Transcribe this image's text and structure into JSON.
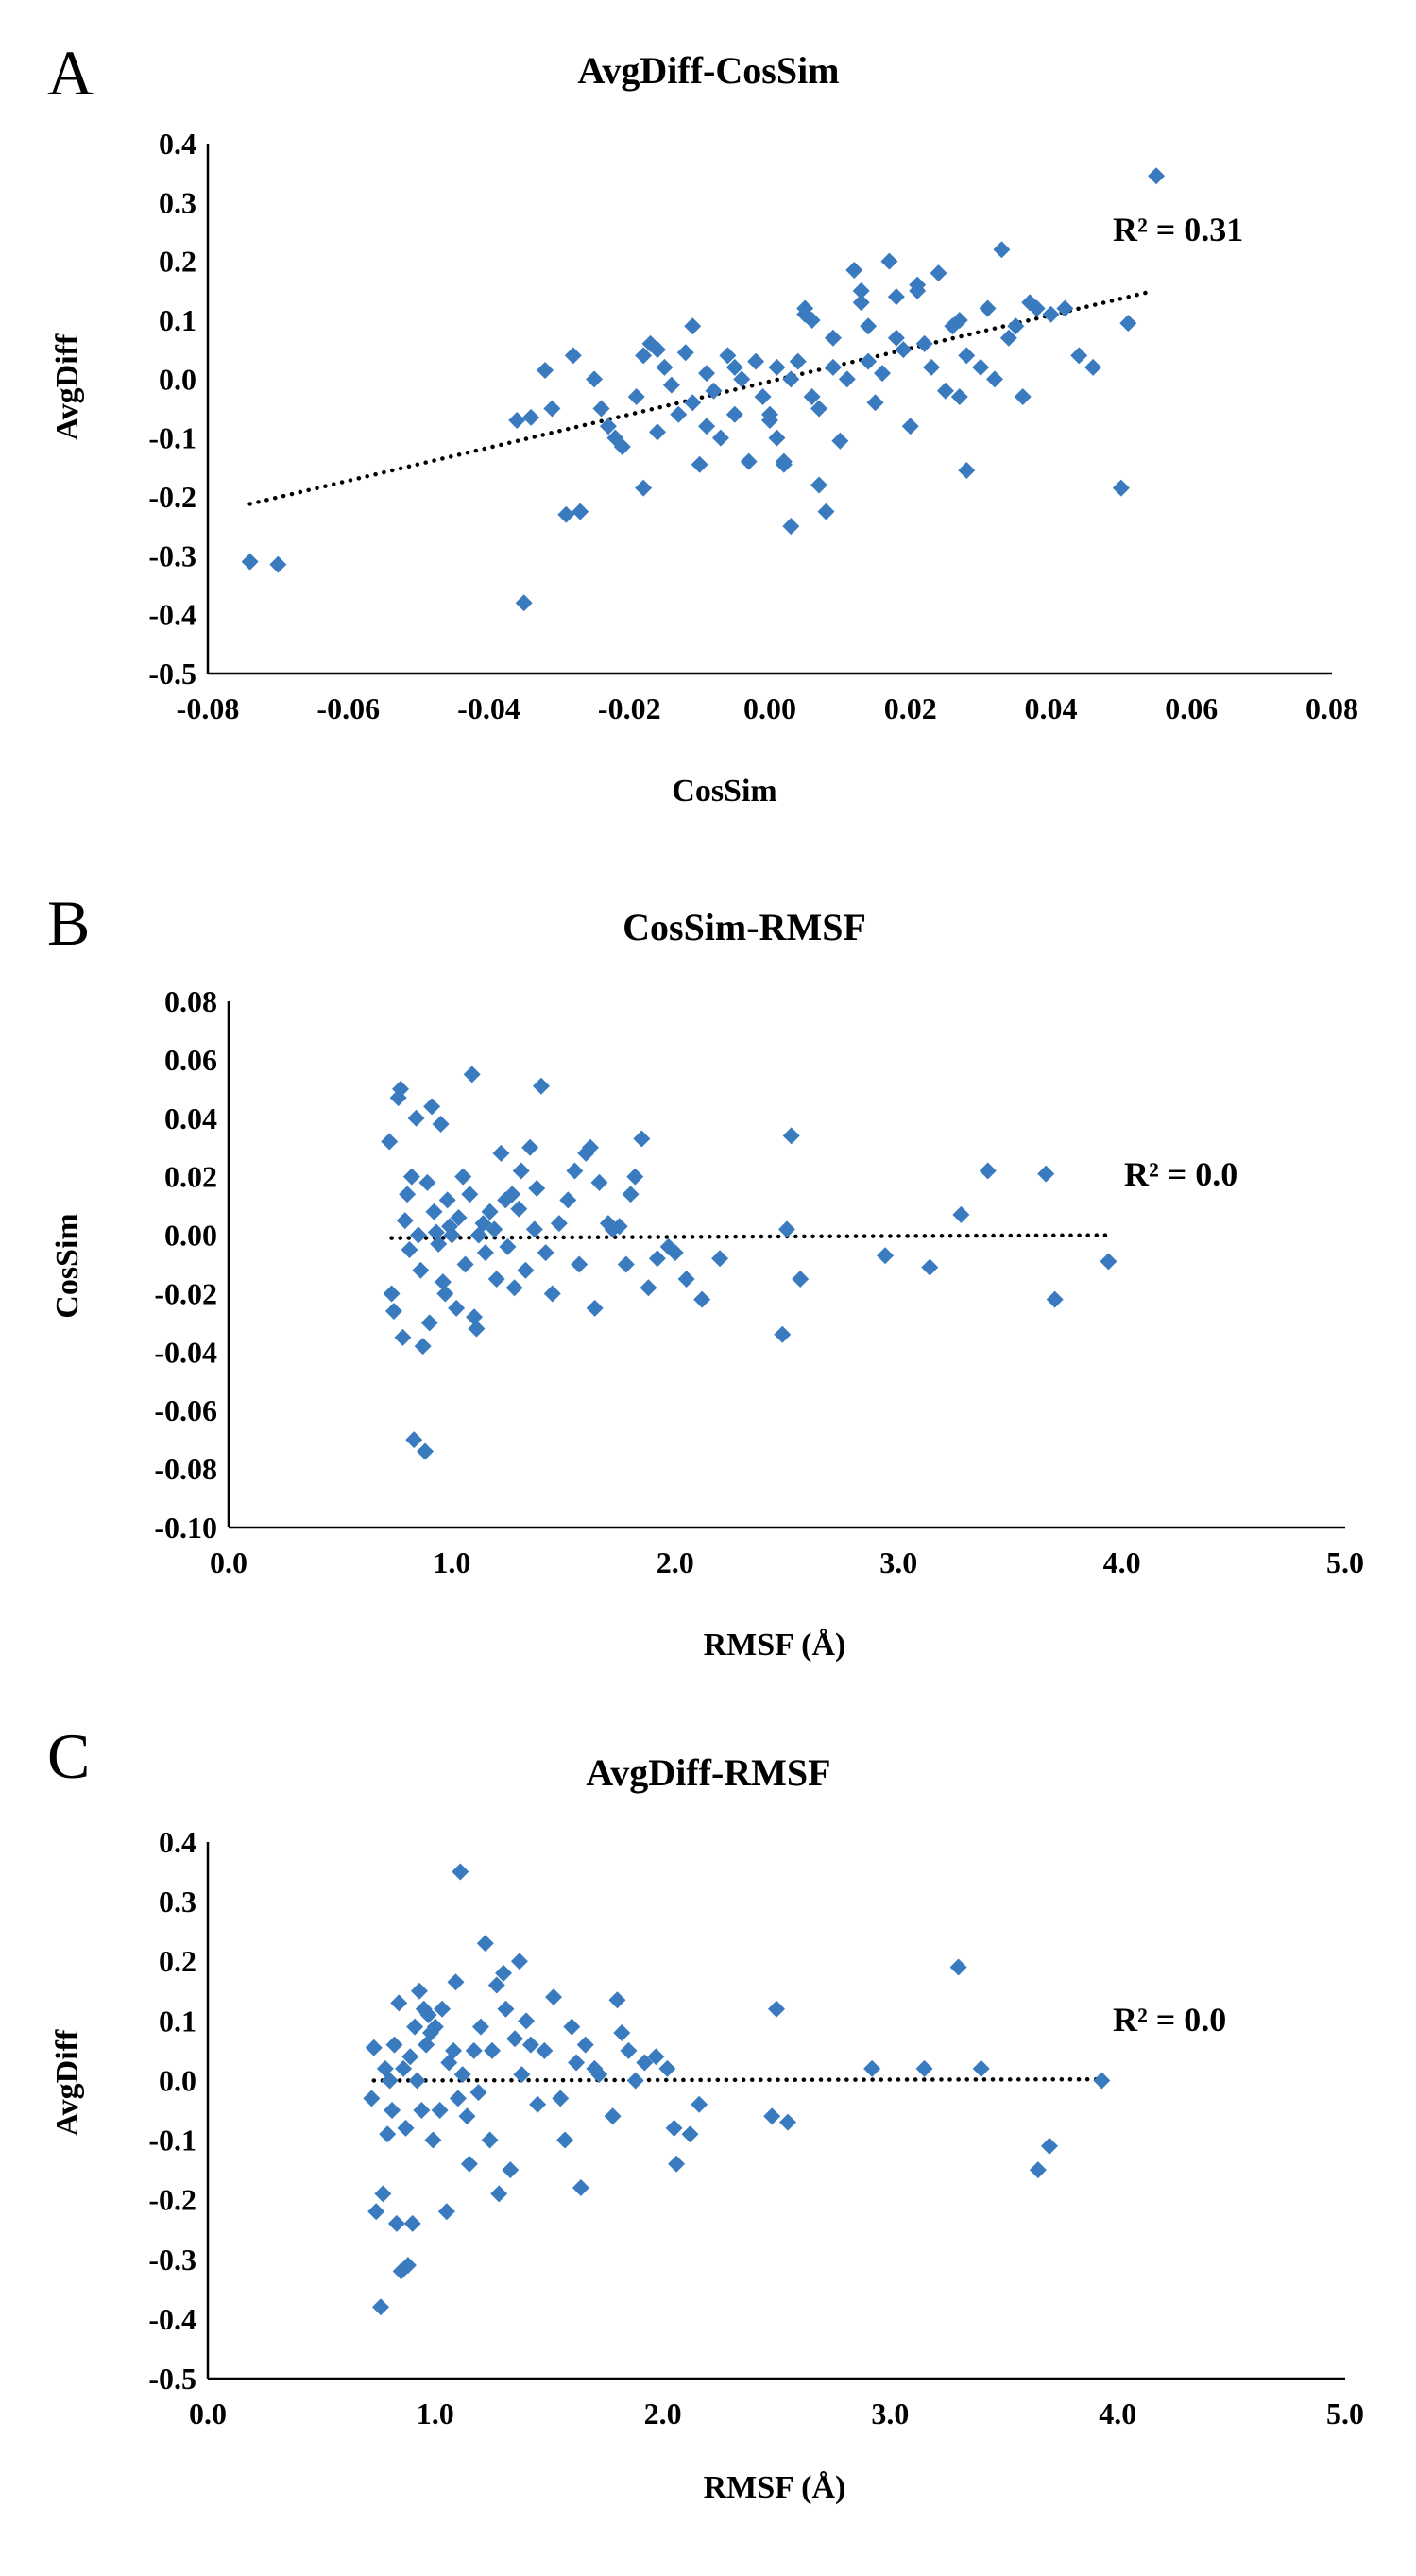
{
  "chart_data": [
    {
      "panel": "A",
      "type": "scatter",
      "title": "AvgDiff-CosSim",
      "xlabel": "CosSim",
      "ylabel": "AvgDiff",
      "xlim": [
        -0.08,
        0.08
      ],
      "ylim": [
        -0.5,
        0.4
      ],
      "xticks": [
        "-0.08",
        "-0.06",
        "-0.04",
        "-0.02",
        "0.00",
        "0.02",
        "0.04",
        "0.06",
        "0.08"
      ],
      "yticks": [
        "0.4",
        "0.3",
        "0.2",
        "0.1",
        "0.0",
        "-0.1",
        "-0.2",
        "-0.3",
        "-0.4",
        "-0.5"
      ],
      "r2_label": "R² = 0.31",
      "marker_color": "#3a7bbf",
      "trendline": {
        "x": [
          -0.074,
          0.054
        ],
        "y": [
          -0.212,
          0.148
        ]
      },
      "points": [
        [
          -0.074,
          -0.31
        ],
        [
          -0.07,
          -0.315
        ],
        [
          -0.035,
          -0.38
        ],
        [
          -0.036,
          -0.07
        ],
        [
          -0.034,
          -0.065
        ],
        [
          -0.032,
          0.015
        ],
        [
          -0.031,
          -0.05
        ],
        [
          -0.029,
          -0.23
        ],
        [
          -0.028,
          0.04
        ],
        [
          -0.027,
          -0.225
        ],
        [
          -0.025,
          0.0
        ],
        [
          -0.024,
          -0.05
        ],
        [
          -0.023,
          -0.08
        ],
        [
          -0.022,
          -0.1
        ],
        [
          -0.021,
          -0.115
        ],
        [
          -0.019,
          -0.03
        ],
        [
          -0.018,
          0.04
        ],
        [
          -0.018,
          -0.185
        ],
        [
          -0.017,
          0.06
        ],
        [
          -0.016,
          0.05
        ],
        [
          -0.016,
          -0.09
        ],
        [
          -0.015,
          0.02
        ],
        [
          -0.014,
          -0.01
        ],
        [
          -0.013,
          -0.06
        ],
        [
          -0.012,
          0.045
        ],
        [
          -0.011,
          0.09
        ],
        [
          -0.011,
          -0.04
        ],
        [
          -0.01,
          -0.145
        ],
        [
          -0.009,
          0.01
        ],
        [
          -0.009,
          -0.08
        ],
        [
          -0.008,
          -0.02
        ],
        [
          -0.007,
          -0.1
        ],
        [
          -0.006,
          0.04
        ],
        [
          -0.005,
          0.02
        ],
        [
          -0.005,
          -0.06
        ],
        [
          -0.004,
          0.0
        ],
        [
          -0.003,
          -0.14
        ],
        [
          -0.002,
          0.03
        ],
        [
          -0.001,
          -0.03
        ],
        [
          0.0,
          -0.06
        ],
        [
          0.0,
          -0.07
        ],
        [
          0.001,
          -0.1
        ],
        [
          0.001,
          0.02
        ],
        [
          0.002,
          -0.14
        ],
        [
          0.002,
          -0.145
        ],
        [
          0.003,
          0.0
        ],
        [
          0.003,
          -0.25
        ],
        [
          0.004,
          0.03
        ],
        [
          0.005,
          0.12
        ],
        [
          0.005,
          0.11
        ],
        [
          0.006,
          0.1
        ],
        [
          0.006,
          -0.03
        ],
        [
          0.007,
          -0.05
        ],
        [
          0.007,
          -0.18
        ],
        [
          0.008,
          -0.225
        ],
        [
          0.009,
          0.02
        ],
        [
          0.009,
          0.07
        ],
        [
          0.01,
          -0.105
        ],
        [
          0.011,
          0.0
        ],
        [
          0.012,
          0.185
        ],
        [
          0.013,
          0.13
        ],
        [
          0.013,
          0.15
        ],
        [
          0.014,
          0.09
        ],
        [
          0.014,
          0.03
        ],
        [
          0.015,
          -0.04
        ],
        [
          0.016,
          0.01
        ],
        [
          0.017,
          0.2
        ],
        [
          0.018,
          0.14
        ],
        [
          0.018,
          0.07
        ],
        [
          0.019,
          0.05
        ],
        [
          0.02,
          -0.08
        ],
        [
          0.021,
          0.16
        ],
        [
          0.021,
          0.15
        ],
        [
          0.022,
          0.06
        ],
        [
          0.023,
          0.02
        ],
        [
          0.024,
          0.18
        ],
        [
          0.025,
          -0.02
        ],
        [
          0.026,
          0.09
        ],
        [
          0.027,
          0.1
        ],
        [
          0.027,
          -0.03
        ],
        [
          0.028,
          0.04
        ],
        [
          0.028,
          -0.155
        ],
        [
          0.03,
          0.02
        ],
        [
          0.031,
          0.12
        ],
        [
          0.032,
          0.0
        ],
        [
          0.033,
          0.22
        ],
        [
          0.034,
          0.07
        ],
        [
          0.035,
          0.09
        ],
        [
          0.036,
          -0.03
        ],
        [
          0.037,
          0.13
        ],
        [
          0.038,
          0.12
        ],
        [
          0.04,
          0.11
        ],
        [
          0.042,
          0.12
        ],
        [
          0.044,
          0.04
        ],
        [
          0.046,
          0.02
        ],
        [
          0.05,
          -0.185
        ],
        [
          0.051,
          0.095
        ],
        [
          0.055,
          0.345
        ]
      ]
    },
    {
      "panel": "B",
      "type": "scatter",
      "title": "CosSim-RMSF",
      "xlabel": "RMSF (Å)",
      "ylabel": "CosSim",
      "xlim": [
        0.0,
        5.0
      ],
      "ylim": [
        -0.1,
        0.08
      ],
      "xticks": [
        "0.0",
        "1.0",
        "2.0",
        "3.0",
        "4.0",
        "5.0"
      ],
      "yticks": [
        "0.08",
        "0.06",
        "0.04",
        "0.02",
        "0.00",
        "-0.02",
        "-0.04",
        "-0.06",
        "-0.08",
        "-0.10"
      ],
      "r2_label": "R² = 0.0",
      "marker_color": "#3a7bbf",
      "trendline": {
        "x": [
          0.73,
          3.95
        ],
        "y": [
          -0.001,
          0.0
        ]
      },
      "points": [
        [
          0.72,
          0.032
        ],
        [
          0.73,
          -0.02
        ],
        [
          0.74,
          -0.026
        ],
        [
          0.76,
          0.047
        ],
        [
          0.77,
          0.05
        ],
        [
          0.78,
          -0.035
        ],
        [
          0.79,
          0.005
        ],
        [
          0.8,
          0.014
        ],
        [
          0.81,
          -0.005
        ],
        [
          0.82,
          0.02
        ],
        [
          0.83,
          -0.07
        ],
        [
          0.84,
          0.04
        ],
        [
          0.85,
          0.0
        ],
        [
          0.86,
          -0.012
        ],
        [
          0.87,
          -0.038
        ],
        [
          0.88,
          -0.074
        ],
        [
          0.89,
          0.018
        ],
        [
          0.9,
          -0.03
        ],
        [
          0.91,
          0.044
        ],
        [
          0.92,
          0.008
        ],
        [
          0.93,
          0.001
        ],
        [
          0.94,
          -0.003
        ],
        [
          0.95,
          0.038
        ],
        [
          0.96,
          -0.016
        ],
        [
          0.97,
          -0.02
        ],
        [
          0.98,
          0.012
        ],
        [
          0.99,
          0.003
        ],
        [
          1.0,
          0.0
        ],
        [
          1.02,
          -0.025
        ],
        [
          1.03,
          0.006
        ],
        [
          1.05,
          0.02
        ],
        [
          1.06,
          -0.01
        ],
        [
          1.08,
          0.014
        ],
        [
          1.09,
          0.055
        ],
        [
          1.1,
          -0.028
        ],
        [
          1.11,
          -0.032
        ],
        [
          1.12,
          0.0
        ],
        [
          1.14,
          0.004
        ],
        [
          1.15,
          -0.006
        ],
        [
          1.17,
          0.008
        ],
        [
          1.19,
          0.002
        ],
        [
          1.2,
          -0.015
        ],
        [
          1.22,
          0.028
        ],
        [
          1.24,
          0.012
        ],
        [
          1.25,
          -0.004
        ],
        [
          1.27,
          0.014
        ],
        [
          1.28,
          -0.018
        ],
        [
          1.3,
          0.009
        ],
        [
          1.31,
          0.022
        ],
        [
          1.33,
          -0.012
        ],
        [
          1.35,
          0.03
        ],
        [
          1.37,
          0.002
        ],
        [
          1.38,
          0.016
        ],
        [
          1.4,
          0.051
        ],
        [
          1.42,
          -0.006
        ],
        [
          1.45,
          -0.02
        ],
        [
          1.48,
          0.004
        ],
        [
          1.52,
          0.012
        ],
        [
          1.55,
          0.022
        ],
        [
          1.57,
          -0.01
        ],
        [
          1.6,
          0.028
        ],
        [
          1.62,
          0.03
        ],
        [
          1.64,
          -0.025
        ],
        [
          1.66,
          0.018
        ],
        [
          1.7,
          0.004
        ],
        [
          1.72,
          0.002
        ],
        [
          1.75,
          0.003
        ],
        [
          1.78,
          -0.01
        ],
        [
          1.8,
          0.014
        ],
        [
          1.82,
          0.02
        ],
        [
          1.85,
          0.033
        ],
        [
          1.88,
          -0.018
        ],
        [
          1.92,
          -0.008
        ],
        [
          1.97,
          -0.004
        ],
        [
          2.0,
          -0.006
        ],
        [
          2.05,
          -0.015
        ],
        [
          2.12,
          -0.022
        ],
        [
          2.2,
          -0.008
        ],
        [
          2.48,
          -0.034
        ],
        [
          2.5,
          0.002
        ],
        [
          2.52,
          0.034
        ],
        [
          2.56,
          -0.015
        ],
        [
          2.94,
          -0.007
        ],
        [
          3.14,
          -0.011
        ],
        [
          3.28,
          0.007
        ],
        [
          3.4,
          0.022
        ],
        [
          3.66,
          0.021
        ],
        [
          3.7,
          -0.022
        ],
        [
          3.94,
          -0.009
        ]
      ]
    },
    {
      "panel": "C",
      "type": "scatter",
      "title": "AvgDiff-RMSF",
      "xlabel": "RMSF (Å)",
      "ylabel": "AvgDiff",
      "xlim": [
        0.0,
        5.0
      ],
      "ylim": [
        -0.5,
        0.4
      ],
      "xticks": [
        "0.0",
        "1.0",
        "2.0",
        "3.0",
        "4.0",
        "5.0"
      ],
      "yticks": [
        "0.4",
        "0.3",
        "0.2",
        "0.1",
        "0.0",
        "-0.1",
        "-0.2",
        "-0.3",
        "-0.4",
        "-0.5"
      ],
      "r2_label": "R² = 0.0",
      "marker_color": "#3a7bbf",
      "trendline": {
        "x": [
          0.73,
          3.95
        ],
        "y": [
          0.0,
          0.002
        ]
      },
      "points": [
        [
          0.72,
          -0.03
        ],
        [
          0.73,
          0.055
        ],
        [
          0.74,
          -0.22
        ],
        [
          0.76,
          -0.38
        ],
        [
          0.77,
          -0.19
        ],
        [
          0.78,
          0.02
        ],
        [
          0.79,
          -0.09
        ],
        [
          0.8,
          0.0
        ],
        [
          0.81,
          -0.05
        ],
        [
          0.82,
          0.06
        ],
        [
          0.83,
          -0.24
        ],
        [
          0.84,
          0.13
        ],
        [
          0.85,
          -0.32
        ],
        [
          0.86,
          0.02
        ],
        [
          0.87,
          -0.08
        ],
        [
          0.88,
          -0.31
        ],
        [
          0.89,
          0.04
        ],
        [
          0.9,
          -0.24
        ],
        [
          0.91,
          0.09
        ],
        [
          0.92,
          0.0
        ],
        [
          0.93,
          0.15
        ],
        [
          0.94,
          -0.05
        ],
        [
          0.95,
          0.12
        ],
        [
          0.96,
          0.06
        ],
        [
          0.97,
          0.11
        ],
        [
          0.98,
          0.08
        ],
        [
          0.99,
          -0.1
        ],
        [
          1.0,
          0.09
        ],
        [
          1.02,
          -0.05
        ],
        [
          1.03,
          0.12
        ],
        [
          1.05,
          -0.22
        ],
        [
          1.06,
          0.03
        ],
        [
          1.08,
          0.05
        ],
        [
          1.09,
          0.165
        ],
        [
          1.1,
          -0.03
        ],
        [
          1.11,
          0.35
        ],
        [
          1.12,
          0.01
        ],
        [
          1.14,
          -0.06
        ],
        [
          1.15,
          -0.14
        ],
        [
          1.17,
          0.05
        ],
        [
          1.19,
          -0.02
        ],
        [
          1.2,
          0.09
        ],
        [
          1.22,
          0.23
        ],
        [
          1.24,
          -0.1
        ],
        [
          1.25,
          0.05
        ],
        [
          1.27,
          0.16
        ],
        [
          1.28,
          -0.19
        ],
        [
          1.3,
          0.18
        ],
        [
          1.31,
          0.12
        ],
        [
          1.33,
          -0.15
        ],
        [
          1.35,
          0.07
        ],
        [
          1.37,
          0.2
        ],
        [
          1.38,
          0.01
        ],
        [
          1.4,
          0.1
        ],
        [
          1.42,
          0.06
        ],
        [
          1.45,
          -0.04
        ],
        [
          1.48,
          0.05
        ],
        [
          1.52,
          0.14
        ],
        [
          1.55,
          -0.03
        ],
        [
          1.57,
          -0.1
        ],
        [
          1.6,
          0.09
        ],
        [
          1.62,
          0.03
        ],
        [
          1.64,
          -0.18
        ],
        [
          1.66,
          0.06
        ],
        [
          1.7,
          0.02
        ],
        [
          1.72,
          0.01
        ],
        [
          1.78,
          -0.06
        ],
        [
          1.8,
          0.135
        ],
        [
          1.82,
          0.08
        ],
        [
          1.85,
          0.05
        ],
        [
          1.88,
          0.0
        ],
        [
          1.92,
          0.03
        ],
        [
          1.97,
          0.04
        ],
        [
          2.02,
          0.02
        ],
        [
          2.05,
          -0.08
        ],
        [
          2.06,
          -0.14
        ],
        [
          2.12,
          -0.09
        ],
        [
          2.16,
          -0.04
        ],
        [
          2.48,
          -0.06
        ],
        [
          2.5,
          0.12
        ],
        [
          2.55,
          -0.07
        ],
        [
          2.92,
          0.02
        ],
        [
          3.15,
          0.02
        ],
        [
          3.3,
          0.19
        ],
        [
          3.4,
          0.02
        ],
        [
          3.65,
          -0.15
        ],
        [
          3.7,
          -0.11
        ],
        [
          3.93,
          0.0
        ]
      ]
    }
  ]
}
